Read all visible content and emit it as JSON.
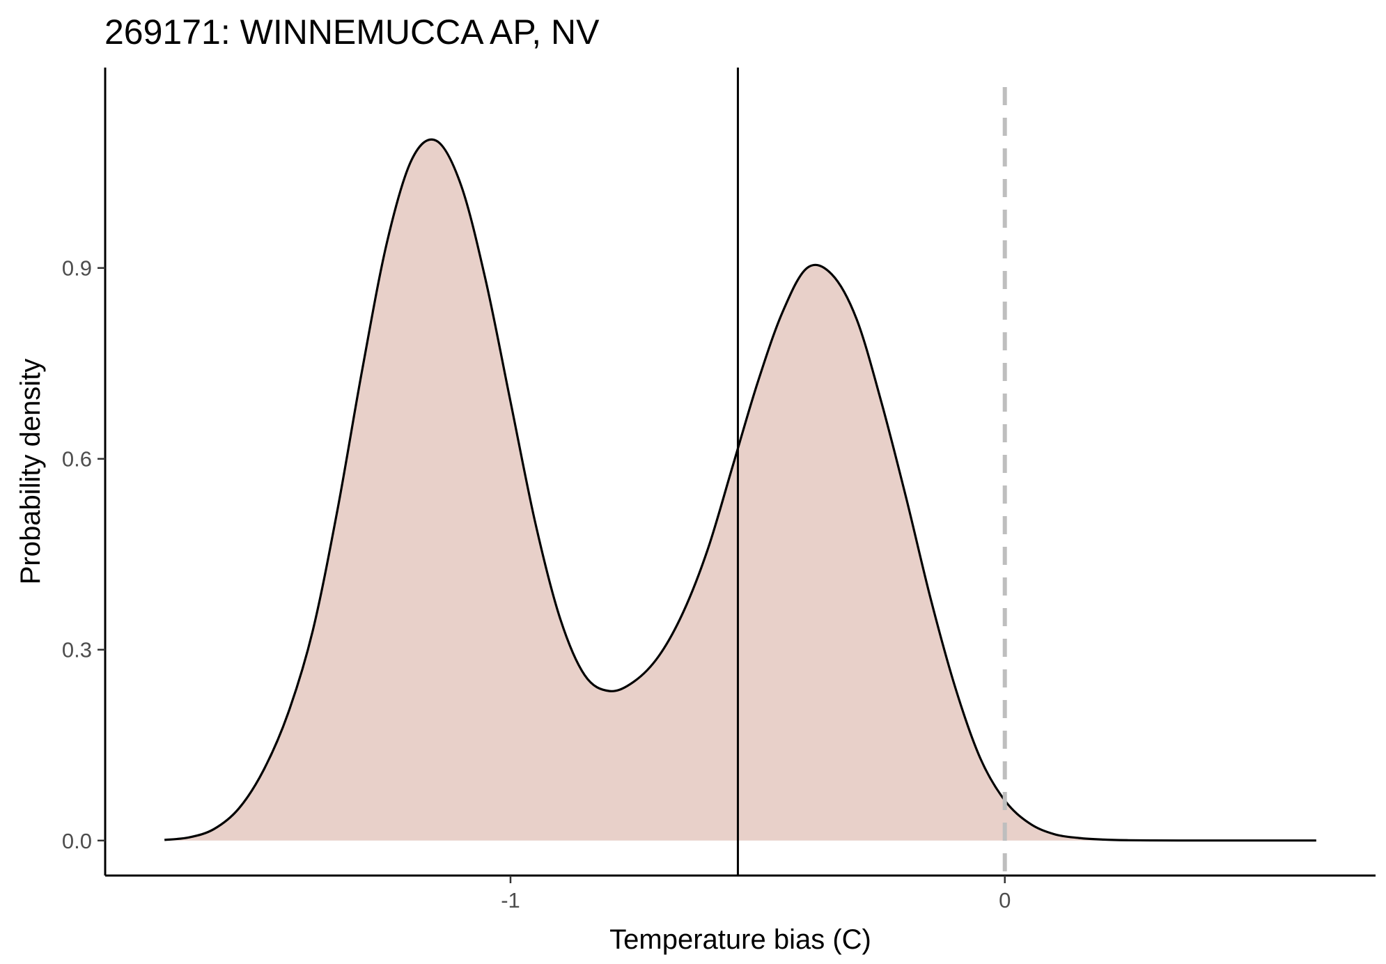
{
  "chart_data": {
    "type": "area",
    "title": "269171: WINNEMUCCA AP, NV",
    "xlabel": "Temperature bias (C)",
    "ylabel": "Probability density",
    "xlim": [
      -1.82,
      0.75
    ],
    "ylim": [
      -0.055,
      1.215
    ],
    "x_ticks": [
      {
        "value": -1,
        "label": "-1"
      },
      {
        "value": 0,
        "label": "0"
      }
    ],
    "y_ticks": [
      {
        "value": 0.0,
        "label": "0.0"
      },
      {
        "value": 0.3,
        "label": "0.3"
      },
      {
        "value": 0.6,
        "label": "0.6"
      },
      {
        "value": 0.9,
        "label": "0.9"
      }
    ],
    "series": [
      {
        "x": [
          -1.7,
          -1.65,
          -1.6,
          -1.55,
          -1.5,
          -1.45,
          -1.4,
          -1.35,
          -1.3,
          -1.25,
          -1.2,
          -1.15,
          -1.1,
          -1.05,
          -1.0,
          -0.95,
          -0.9,
          -0.85,
          -0.8,
          -0.75,
          -0.7,
          -0.65,
          -0.6,
          -0.55,
          -0.5,
          -0.45,
          -0.4,
          -0.35,
          -0.3,
          -0.25,
          -0.2,
          -0.15,
          -0.1,
          -0.05,
          0.0,
          0.05,
          0.1,
          0.15,
          0.2,
          0.25,
          0.3,
          0.35,
          0.4,
          0.45,
          0.5,
          0.55,
          0.6,
          0.63
        ],
        "y": [
          0.001,
          0.005,
          0.018,
          0.05,
          0.11,
          0.2,
          0.33,
          0.52,
          0.74,
          0.94,
          1.07,
          1.1,
          1.03,
          0.88,
          0.69,
          0.5,
          0.35,
          0.26,
          0.235,
          0.25,
          0.29,
          0.36,
          0.46,
          0.59,
          0.72,
          0.83,
          0.9,
          0.89,
          0.82,
          0.69,
          0.54,
          0.38,
          0.24,
          0.13,
          0.063,
          0.027,
          0.01,
          0.004,
          0.0015,
          0.0005,
          0.0002,
          0.0001,
          0.0001,
          0.0001,
          0.0001,
          0.0001,
          0.0001,
          0.0001
        ]
      }
    ],
    "reference_lines": [
      {
        "axis": "x",
        "value": -0.54,
        "style": "solid",
        "color": "#000000"
      },
      {
        "axis": "x",
        "value": 0.0,
        "style": "dashed",
        "color": "#bebebe"
      }
    ],
    "fill_color": "#e8d0c9",
    "line_color": "#000000",
    "grid": false
  }
}
